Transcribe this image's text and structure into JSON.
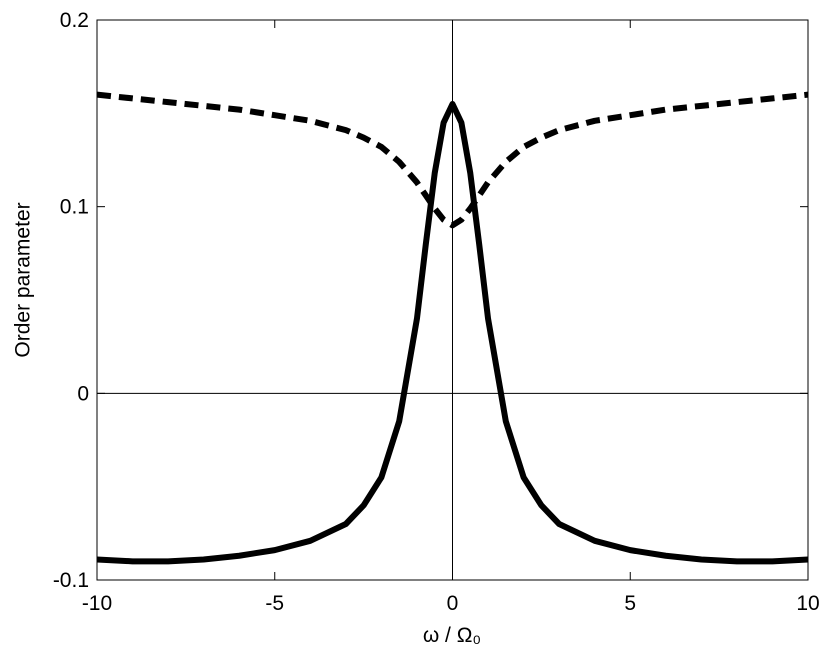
{
  "chart_data": {
    "type": "line",
    "xlabel": "ω / Ω₀",
    "ylabel": "Order parameter",
    "x": [
      -10,
      -9,
      -8,
      -7,
      -6,
      -5,
      -4,
      -3,
      -2.5,
      -2,
      -1.5,
      -1,
      -0.75,
      -0.5,
      -0.25,
      0,
      0.25,
      0.5,
      0.75,
      1,
      1.5,
      2,
      2.5,
      3,
      4,
      5,
      6,
      7,
      8,
      9,
      10
    ],
    "series": [
      {
        "color": "#000000",
        "linestyle": "solid",
        "values": [
          -0.089,
          -0.09,
          -0.09,
          -0.089,
          -0.087,
          -0.084,
          -0.079,
          -0.07,
          -0.06,
          -0.045,
          -0.015,
          0.04,
          0.08,
          0.118,
          0.145,
          0.155,
          0.145,
          0.118,
          0.08,
          0.04,
          -0.015,
          -0.045,
          -0.06,
          -0.07,
          -0.079,
          -0.084,
          -0.087,
          -0.089,
          -0.09,
          -0.09,
          -0.089
        ]
      },
      {
        "color": "#000000",
        "linestyle": "dashed",
        "values": [
          0.16,
          0.158,
          0.156,
          0.154,
          0.152,
          0.149,
          0.146,
          0.141,
          0.137,
          0.132,
          0.124,
          0.113,
          0.106,
          0.099,
          0.093,
          0.09,
          0.093,
          0.099,
          0.106,
          0.113,
          0.124,
          0.132,
          0.137,
          0.141,
          0.146,
          0.149,
          0.152,
          0.154,
          0.156,
          0.158,
          0.16
        ]
      }
    ],
    "xlim": [
      -10,
      10
    ],
    "xticks": [
      -10,
      -5,
      0,
      5,
      10
    ],
    "ylim": [
      -0.1,
      0.2
    ],
    "yticks": [
      -0.1,
      0,
      0.1,
      0.2
    ],
    "grid": false,
    "zero_lines": true
  }
}
